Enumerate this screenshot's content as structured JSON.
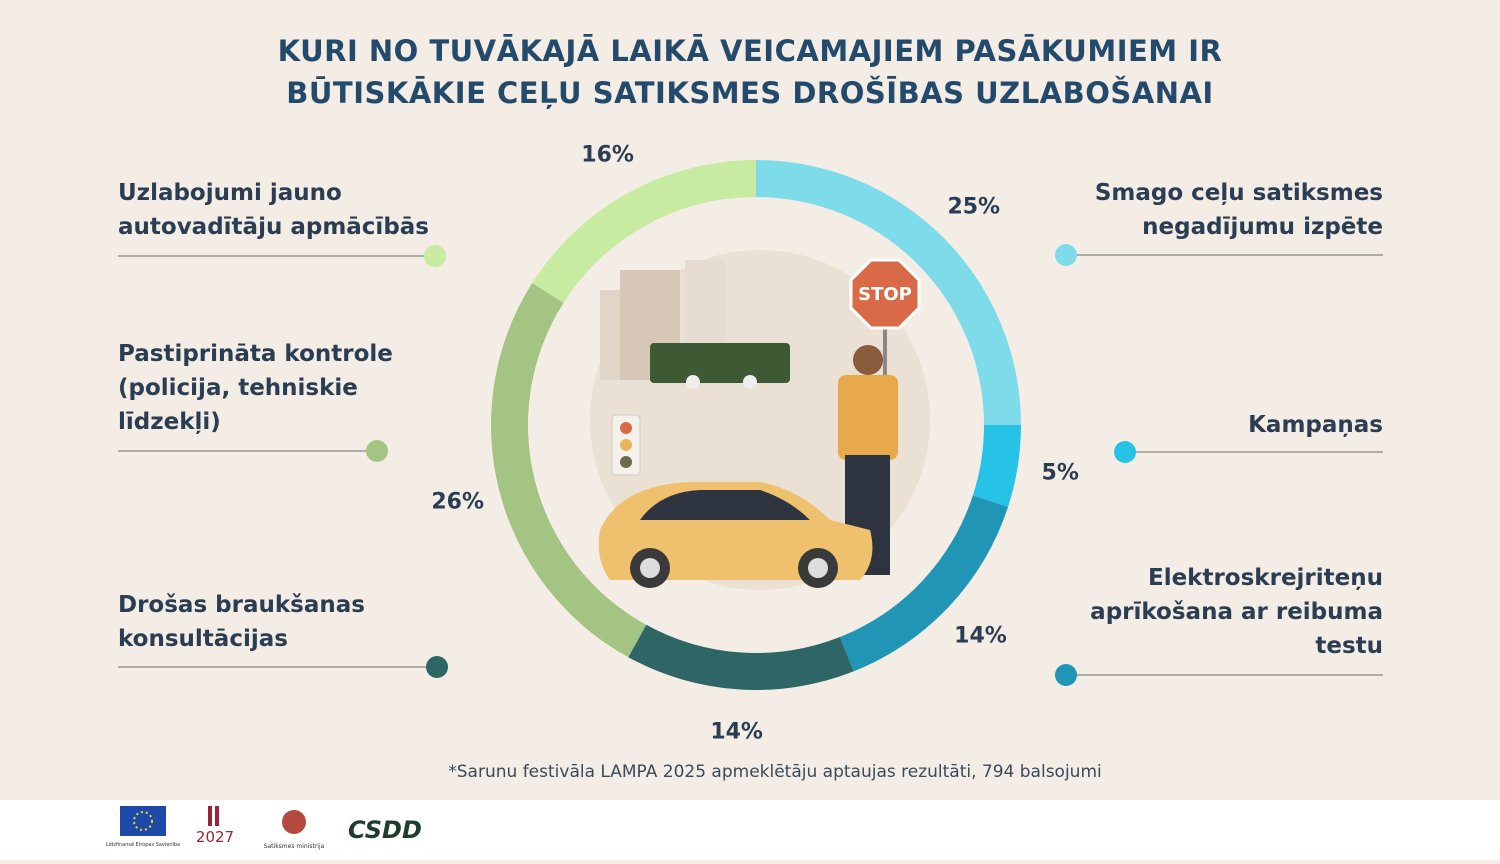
{
  "chart_data": {
    "type": "donut",
    "title": "KURI NO TUVĀKAJĀ LAIKĀ VEICAMAJIEM PASĀKUMIEM IR BŪTISKĀKIE CEĻU SATIKSMES DROŠĪBAS UZLABOŠANAI",
    "categories": [
      "Smago ceļu satiksmes negadījumu izpēte",
      "Kampaņas",
      "Elektroskrejriteņu aprīkošana ar reibuma testu",
      "Drošas braukšanas konsultācijas",
      "Pastiprināta kontrole (policija, tehniskie līdzekļi)",
      "Uzlabojumi jauno autovadītāju apmācībās"
    ],
    "values": [
      25,
      5,
      14,
      14,
      26,
      16
    ],
    "value_labels": [
      "25%",
      "5%",
      "14%",
      "14%",
      "26%",
      "16%"
    ],
    "colors": [
      "#7edcea",
      "#27c3e6",
      "#2095b5",
      "#2d6665",
      "#a3c482",
      "#c7eca1"
    ],
    "note": "*Sarunu festivāla LAMPA 2025 apmeklētāju aptaujas rezultāti, 794 balsojumi"
  },
  "illustration": {
    "sign": "STOP"
  },
  "footer": {
    "logos": [
      "Līdzfinansē Eiropas Savienība",
      "2027",
      "Satiksmes ministrija",
      "CSDD"
    ]
  }
}
